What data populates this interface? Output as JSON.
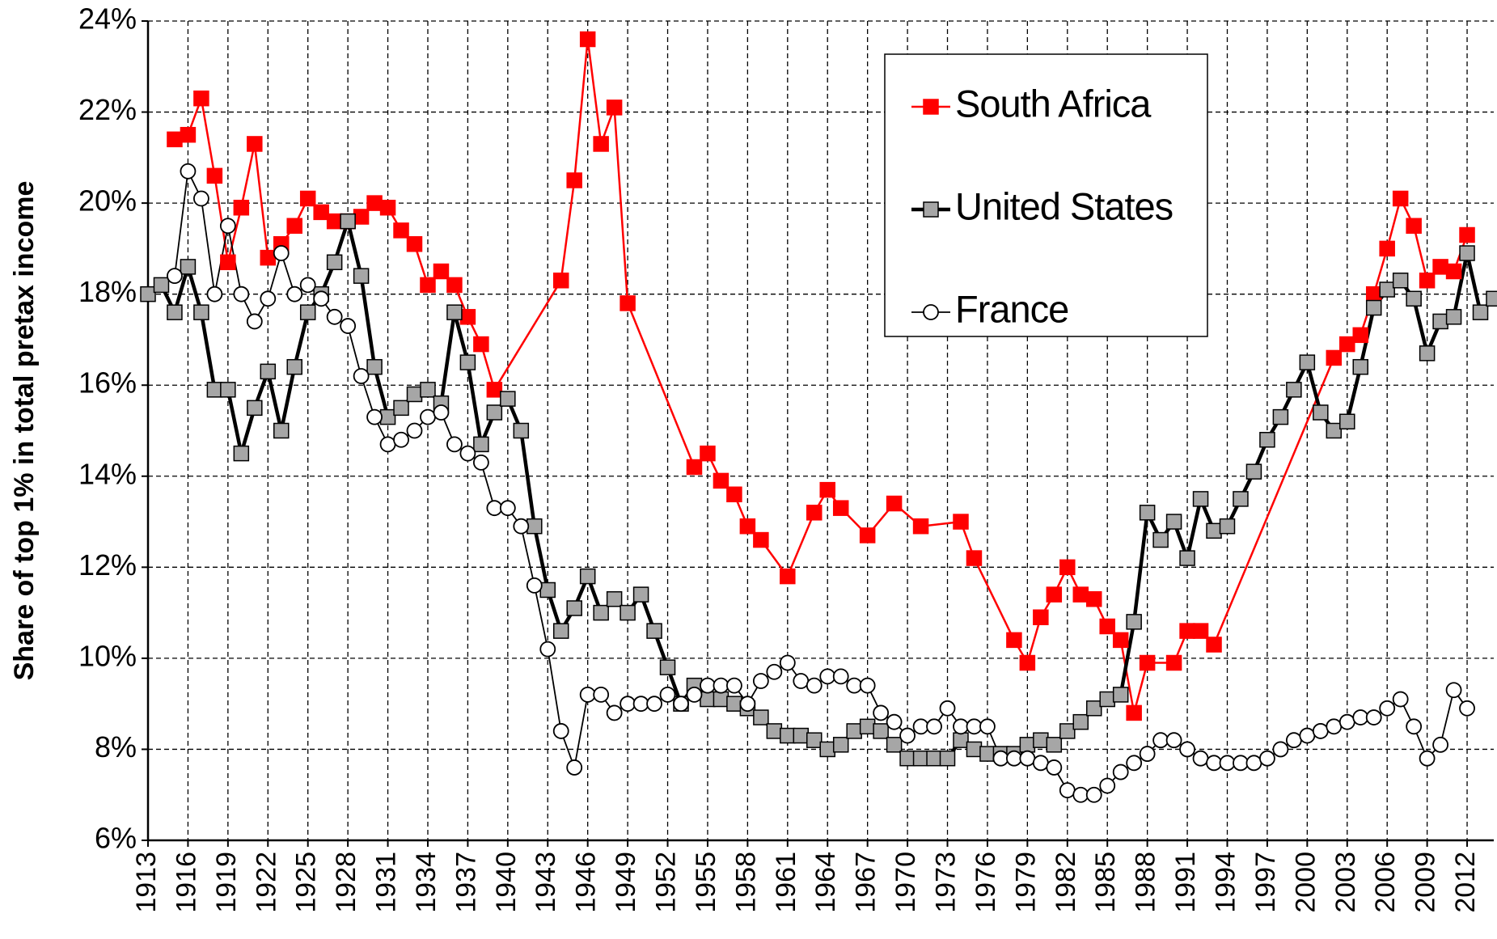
{
  "chart_data": {
    "type": "line",
    "ylabel": "Share  of top 1% in total pretax income",
    "xlim": [
      1913,
      2014
    ],
    "xticks": [
      1913,
      1916,
      1919,
      1922,
      1925,
      1928,
      1931,
      1934,
      1937,
      1940,
      1943,
      1946,
      1949,
      1952,
      1955,
      1958,
      1961,
      1964,
      1967,
      1970,
      1973,
      1976,
      1979,
      1982,
      1985,
      1988,
      1991,
      1994,
      1997,
      2000,
      2003,
      2006,
      2009,
      2012
    ],
    "ylim": [
      6,
      24
    ],
    "yticks": [
      {
        "value": 6,
        "label": "6%"
      },
      {
        "value": 8,
        "label": "8%"
      },
      {
        "value": 10,
        "label": "10%"
      },
      {
        "value": 12,
        "label": "12%"
      },
      {
        "value": 14,
        "label": "14%"
      },
      {
        "value": 16,
        "label": "16%"
      },
      {
        "value": 18,
        "label": "18%"
      },
      {
        "value": 20,
        "label": "20%"
      },
      {
        "value": 22,
        "label": "22%"
      },
      {
        "value": 24,
        "label": "24%"
      }
    ],
    "grid": true,
    "legend": "top-right",
    "series": [
      {
        "name": "South Africa",
        "color": "#ff0000",
        "marker": "square",
        "x": [
          1915,
          1916,
          1917,
          1918,
          1919,
          1920,
          1921,
          1922,
          1923,
          1924,
          1925,
          1926,
          1927,
          1928,
          1929,
          1930,
          1931,
          1932,
          1933,
          1934,
          1935,
          1936,
          1937,
          1938,
          1939,
          1944,
          1945,
          1946,
          1947,
          1948,
          1949,
          1954,
          1955,
          1956,
          1957,
          1958,
          1959,
          1961,
          1963,
          1964,
          1965,
          1967,
          1969,
          1971,
          1974,
          1975,
          1978,
          1979,
          1980,
          1981,
          1982,
          1983,
          1984,
          1985,
          1986,
          1987,
          1988,
          1990,
          1991,
          1992,
          1993,
          2002,
          2003,
          2004,
          2005,
          2006,
          2007,
          2008,
          2009,
          2010,
          2011,
          2012
        ],
        "values": [
          21.4,
          21.5,
          22.3,
          20.6,
          18.7,
          19.9,
          21.3,
          18.8,
          19.1,
          19.5,
          20.1,
          19.8,
          19.6,
          19.6,
          19.7,
          20.0,
          19.9,
          19.4,
          19.1,
          18.2,
          18.5,
          18.2,
          17.5,
          16.9,
          15.9,
          18.3,
          20.5,
          23.6,
          21.3,
          22.1,
          17.8,
          14.2,
          14.5,
          13.9,
          13.6,
          12.9,
          12.6,
          11.8,
          13.2,
          13.7,
          13.3,
          12.7,
          13.4,
          12.9,
          13.0,
          12.2,
          10.4,
          9.9,
          10.9,
          11.4,
          12.0,
          11.4,
          11.3,
          10.7,
          10.4,
          8.8,
          9.9,
          9.9,
          10.6,
          10.6,
          10.3,
          16.6,
          16.9,
          17.1,
          18.0,
          19.0,
          20.1,
          19.5,
          18.3,
          18.6,
          18.5,
          19.3
        ]
      },
      {
        "name": "United States",
        "color": "#a6a6a6",
        "marker": "square",
        "x": [
          1913,
          1914,
          1915,
          1916,
          1917,
          1918,
          1919,
          1920,
          1921,
          1922,
          1923,
          1924,
          1925,
          1926,
          1927,
          1928,
          1929,
          1930,
          1931,
          1932,
          1933,
          1934,
          1935,
          1936,
          1937,
          1938,
          1939,
          1940,
          1941,
          1942,
          1943,
          1944,
          1945,
          1946,
          1947,
          1948,
          1949,
          1950,
          1951,
          1952,
          1953,
          1954,
          1955,
          1956,
          1957,
          1958,
          1959,
          1960,
          1961,
          1962,
          1963,
          1964,
          1965,
          1966,
          1967,
          1968,
          1969,
          1970,
          1971,
          1972,
          1973,
          1974,
          1975,
          1976,
          1977,
          1978,
          1979,
          1980,
          1981,
          1982,
          1983,
          1984,
          1985,
          1986,
          1987,
          1988,
          1989,
          1990,
          1991,
          1992,
          1993,
          1994,
          1995,
          1996,
          1997,
          1998,
          1999,
          2000,
          2001,
          2002,
          2003,
          2004,
          2005,
          2006,
          2007,
          2008,
          2009,
          2010,
          2011,
          2012,
          2013,
          2014
        ],
        "values": [
          18.0,
          18.2,
          17.6,
          18.6,
          17.6,
          15.9,
          15.9,
          14.5,
          15.5,
          16.3,
          15.0,
          16.4,
          17.6,
          18.0,
          18.7,
          19.6,
          18.4,
          16.4,
          15.3,
          15.5,
          15.8,
          15.9,
          15.6,
          17.6,
          16.5,
          14.7,
          15.4,
          15.7,
          15.0,
          12.9,
          11.5,
          10.6,
          11.1,
          11.8,
          11.0,
          11.3,
          11.0,
          11.4,
          10.6,
          9.8,
          9.0,
          9.4,
          9.1,
          9.1,
          9.0,
          8.9,
          8.7,
          8.4,
          8.3,
          8.3,
          8.2,
          8.0,
          8.1,
          8.4,
          8.5,
          8.4,
          8.1,
          7.8,
          7.8,
          7.8,
          7.8,
          8.2,
          8.0,
          7.9,
          7.9,
          7.9,
          8.1,
          8.2,
          8.1,
          8.4,
          8.6,
          8.9,
          9.1,
          9.2,
          10.8,
          13.2,
          12.6,
          13.0,
          12.2,
          13.5,
          12.8,
          12.9,
          13.5,
          14.1,
          14.8,
          15.3,
          15.9,
          16.5,
          15.4,
          15.0,
          15.2,
          16.4,
          17.7,
          18.1,
          18.3,
          17.9,
          16.7,
          17.4,
          17.5,
          18.9,
          17.6,
          17.9
        ]
      },
      {
        "name": "France",
        "color": "#ffffff",
        "marker": "circle",
        "x": [
          1915,
          1916,
          1917,
          1918,
          1919,
          1920,
          1921,
          1922,
          1923,
          1924,
          1925,
          1926,
          1927,
          1928,
          1929,
          1930,
          1931,
          1932,
          1933,
          1934,
          1935,
          1936,
          1937,
          1938,
          1939,
          1940,
          1941,
          1942,
          1943,
          1944,
          1945,
          1946,
          1947,
          1948,
          1949,
          1950,
          1951,
          1952,
          1953,
          1954,
          1955,
          1956,
          1957,
          1958,
          1959,
          1960,
          1961,
          1962,
          1963,
          1964,
          1965,
          1966,
          1967,
          1968,
          1969,
          1970,
          1971,
          1972,
          1973,
          1974,
          1975,
          1976,
          1977,
          1978,
          1979,
          1980,
          1981,
          1982,
          1983,
          1984,
          1985,
          1986,
          1987,
          1988,
          1989,
          1990,
          1991,
          1992,
          1993,
          1994,
          1995,
          1996,
          1997,
          1998,
          1999,
          2000,
          2001,
          2002,
          2003,
          2004,
          2005,
          2006,
          2007,
          2008,
          2009,
          2010,
          2011,
          2012
        ],
        "values": [
          18.4,
          20.7,
          20.1,
          18.0,
          19.5,
          18.0,
          17.4,
          17.9,
          18.9,
          18.0,
          18.2,
          17.9,
          17.5,
          17.3,
          16.2,
          15.3,
          14.7,
          14.8,
          15.0,
          15.3,
          15.4,
          14.7,
          14.5,
          14.3,
          13.3,
          13.3,
          12.9,
          11.6,
          10.2,
          8.4,
          7.6,
          9.2,
          9.2,
          8.8,
          9.0,
          9.0,
          9.0,
          9.2,
          9.0,
          9.2,
          9.4,
          9.4,
          9.4,
          9.0,
          9.5,
          9.7,
          9.9,
          9.5,
          9.4,
          9.6,
          9.6,
          9.4,
          9.4,
          8.8,
          8.6,
          8.3,
          8.5,
          8.5,
          8.9,
          8.5,
          8.5,
          8.5,
          7.8,
          7.8,
          7.8,
          7.7,
          7.6,
          7.1,
          7.0,
          7.0,
          7.2,
          7.5,
          7.7,
          7.9,
          8.2,
          8.2,
          8.0,
          7.8,
          7.7,
          7.7,
          7.7,
          7.7,
          7.8,
          8.0,
          8.2,
          8.3,
          8.4,
          8.5,
          8.6,
          8.7,
          8.7,
          8.9,
          9.1,
          8.5,
          7.8,
          8.1,
          9.3,
          8.9
        ]
      }
    ]
  }
}
